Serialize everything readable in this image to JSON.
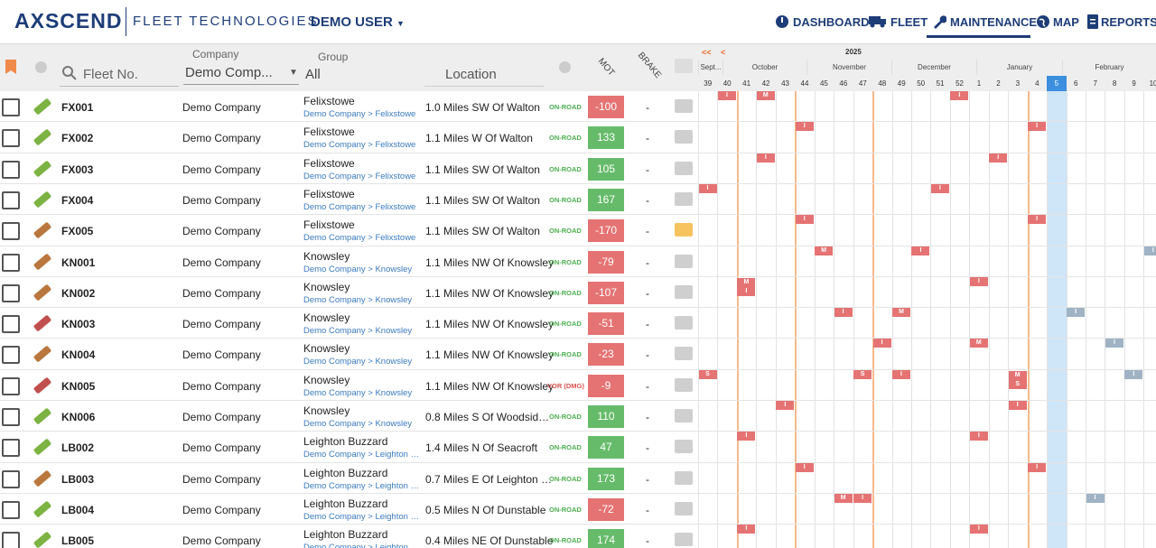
{
  "header": {
    "logo": "AXSCEND",
    "logo_sub": "FLEET TECHNOLOGIES",
    "user": "DEMO USER",
    "nav": [
      "DASHBOARD",
      "FLEET",
      "MAINTENANCE",
      "MAP",
      "REPORTS"
    ],
    "active_nav": "MAINTENANCE"
  },
  "filters": {
    "fleet_placeholder": "Fleet No.",
    "company_label": "Company",
    "company_value": "Demo Comp...",
    "group_label": "Group",
    "group_value": "All",
    "location_label": "Location",
    "mot_label": "MOT",
    "brake_label": "BRAKE"
  },
  "calendar": {
    "prev_fast": "<<",
    "prev": "<",
    "year": "2025",
    "months": [
      "Sept...",
      "October",
      "November",
      "December",
      "January",
      "February"
    ],
    "weeks": [
      "39",
      "40",
      "41",
      "42",
      "43",
      "44",
      "45",
      "46",
      "47",
      "48",
      "49",
      "50",
      "51",
      "52",
      "1",
      "2",
      "3",
      "4",
      "5",
      "6",
      "7",
      "8",
      "9",
      "10"
    ],
    "current_week": "5"
  },
  "rows": [
    {
      "fleet": "FX001",
      "company": "Demo Company",
      "group": "Felixstowe",
      "path": "Demo Company > Felixstowe",
      "location": "1.0 Miles SW Of Walton",
      "status": "ON-ROAD",
      "mot": -100,
      "brake": "-",
      "icon_color": "#7cb342",
      "note": false,
      "events": [
        {
          "week": "40",
          "labels": [
            "I"
          ],
          "color": "#e57373"
        },
        {
          "week": "42",
          "labels": [
            "M"
          ],
          "color": "#e57373"
        },
        {
          "week": "52",
          "labels": [
            "I"
          ],
          "color": "#e57373"
        }
      ]
    },
    {
      "fleet": "FX002",
      "company": "Demo Company",
      "group": "Felixstowe",
      "path": "Demo Company > Felixstowe",
      "location": "1.1 Miles W Of Walton",
      "status": "ON-ROAD",
      "mot": 133,
      "brake": "-",
      "icon_color": "#7cb342",
      "note": false,
      "events": [
        {
          "week": "44",
          "labels": [
            "I"
          ],
          "color": "#e57373"
        },
        {
          "week": "4",
          "labels": [
            "I"
          ],
          "color": "#e57373"
        }
      ]
    },
    {
      "fleet": "FX003",
      "company": "Demo Company",
      "group": "Felixstowe",
      "path": "Demo Company > Felixstowe",
      "location": "1.1 Miles SW Of Walton",
      "status": "ON-ROAD",
      "mot": 105,
      "brake": "-",
      "icon_color": "#7cb342",
      "note": false,
      "events": [
        {
          "week": "42",
          "labels": [
            "I"
          ],
          "color": "#e57373"
        },
        {
          "week": "2",
          "labels": [
            "I"
          ],
          "color": "#e57373"
        }
      ]
    },
    {
      "fleet": "FX004",
      "company": "Demo Company",
      "group": "Felixstowe",
      "path": "Demo Company > Felixstowe",
      "location": "1.1 Miles SW Of Walton",
      "status": "ON-ROAD",
      "mot": 167,
      "brake": "-",
      "icon_color": "#7cb342",
      "note": false,
      "events": [
        {
          "week": "39",
          "labels": [
            "I"
          ],
          "color": "#e57373"
        },
        {
          "week": "51",
          "labels": [
            "I"
          ],
          "color": "#e57373"
        }
      ]
    },
    {
      "fleet": "FX005",
      "company": "Demo Company",
      "group": "Felixstowe",
      "path": "Demo Company > Felixstowe",
      "location": "1.1 Miles SW Of Walton",
      "status": "ON-ROAD",
      "mot": -170,
      "brake": "-",
      "icon_color": "#b9773d",
      "note": true,
      "events": [
        {
          "week": "44",
          "labels": [
            "I"
          ],
          "color": "#e57373"
        },
        {
          "week": "4",
          "labels": [
            "I"
          ],
          "color": "#e57373"
        }
      ]
    },
    {
      "fleet": "KN001",
      "company": "Demo Company",
      "group": "Knowsley",
      "path": "Demo Company > Knowsley",
      "location": "1.1 Miles NW Of Knowsley",
      "status": "ON-ROAD",
      "mot": -79,
      "brake": "-",
      "icon_color": "#b9773d",
      "note": false,
      "events": [
        {
          "week": "45",
          "labels": [
            "M"
          ],
          "color": "#e57373"
        },
        {
          "week": "50",
          "labels": [
            "I"
          ],
          "color": "#e57373"
        },
        {
          "week": "10",
          "labels": [
            "I"
          ],
          "color": "#9fb3c4"
        }
      ]
    },
    {
      "fleet": "KN002",
      "company": "Demo Company",
      "group": "Knowsley",
      "path": "Demo Company > Knowsley",
      "location": "1.1 Miles NW Of Knowsley",
      "status": "ON-ROAD",
      "mot": -107,
      "brake": "-",
      "icon_color": "#b9773d",
      "note": false,
      "events": [
        {
          "week": "41",
          "labels": [
            "M",
            "I"
          ],
          "color": "#e57373"
        },
        {
          "week": "1",
          "labels": [
            "I"
          ],
          "color": "#e57373"
        }
      ]
    },
    {
      "fleet": "KN003",
      "company": "Demo Company",
      "group": "Knowsley",
      "path": "Demo Company > Knowsley",
      "location": "1.1 Miles NW Of Knowsley",
      "status": "ON-ROAD",
      "mot": -51,
      "brake": "-",
      "icon_color": "#c0504d",
      "note": false,
      "events": [
        {
          "week": "46",
          "labels": [
            "I"
          ],
          "color": "#e57373"
        },
        {
          "week": "49",
          "labels": [
            "M"
          ],
          "color": "#e57373"
        },
        {
          "week": "6",
          "labels": [
            "I"
          ],
          "color": "#9fb3c4"
        }
      ]
    },
    {
      "fleet": "KN004",
      "company": "Demo Company",
      "group": "Knowsley",
      "path": "Demo Company > Knowsley",
      "location": "1.1 Miles NW Of Knowsley",
      "status": "ON-ROAD",
      "mot": -23,
      "brake": "-",
      "icon_color": "#b9773d",
      "note": false,
      "events": [
        {
          "week": "48",
          "labels": [
            "I"
          ],
          "color": "#e57373"
        },
        {
          "week": "1",
          "labels": [
            "M"
          ],
          "color": "#e57373"
        },
        {
          "week": "8",
          "labels": [
            "I"
          ],
          "color": "#9fb3c4"
        }
      ]
    },
    {
      "fleet": "KN005",
      "company": "Demo Company",
      "group": "Knowsley",
      "path": "Demo Company > Knowsley",
      "location": "1.1 Miles NW Of Knowsley",
      "status": "VOR (DMG)",
      "mot": -9,
      "brake": "-",
      "icon_color": "#c0504d",
      "note": false,
      "events": [
        {
          "week": "39",
          "labels": [
            "S"
          ],
          "color": "#e57373"
        },
        {
          "week": "47",
          "labels": [
            "S"
          ],
          "color": "#e57373"
        },
        {
          "week": "49",
          "labels": [
            "I"
          ],
          "color": "#e57373"
        },
        {
          "week": "3",
          "labels": [
            "M",
            "S"
          ],
          "color": "#e57373"
        },
        {
          "week": "9",
          "labels": [
            "I"
          ],
          "color": "#9fb3c4"
        }
      ]
    },
    {
      "fleet": "KN006",
      "company": "Demo Company",
      "group": "Knowsley",
      "path": "Demo Company > Knowsley",
      "location": "0.8 Miles S Of Woodsid…",
      "status": "ON-ROAD",
      "mot": 110,
      "brake": "-",
      "icon_color": "#7cb342",
      "note": false,
      "events": [
        {
          "week": "43",
          "labels": [
            "I"
          ],
          "color": "#e57373"
        },
        {
          "week": "3",
          "labels": [
            "I"
          ],
          "color": "#e57373"
        }
      ]
    },
    {
      "fleet": "LB002",
      "company": "Demo Company",
      "group": "Leighton Buzzard",
      "path": "Demo Company > Leighton …",
      "location": "1.4 Miles N Of Seacroft",
      "status": "ON-ROAD",
      "mot": 47,
      "brake": "-",
      "icon_color": "#7cb342",
      "note": false,
      "events": [
        {
          "week": "41",
          "labels": [
            "I"
          ],
          "color": "#e57373"
        },
        {
          "week": "1",
          "labels": [
            "I"
          ],
          "color": "#e57373"
        }
      ]
    },
    {
      "fleet": "LB003",
      "company": "Demo Company",
      "group": "Leighton Buzzard",
      "path": "Demo Company > Leighton …",
      "location": "0.7 Miles E Of Leighton …",
      "status": "ON-ROAD",
      "mot": 173,
      "brake": "-",
      "icon_color": "#b9773d",
      "note": false,
      "events": [
        {
          "week": "44",
          "labels": [
            "I"
          ],
          "color": "#e57373"
        },
        {
          "week": "4",
          "labels": [
            "I"
          ],
          "color": "#e57373"
        }
      ]
    },
    {
      "fleet": "LB004",
      "company": "Demo Company",
      "group": "Leighton Buzzard",
      "path": "Demo Company > Leighton …",
      "location": "0.5 Miles N Of Dunstable",
      "status": "ON-ROAD",
      "mot": -72,
      "brake": "-",
      "icon_color": "#7cb342",
      "note": false,
      "events": [
        {
          "week": "46",
          "labels": [
            "M"
          ],
          "color": "#e57373"
        },
        {
          "week": "47",
          "labels": [
            "I"
          ],
          "color": "#e57373"
        },
        {
          "week": "7",
          "labels": [
            "I"
          ],
          "color": "#9fb3c4"
        }
      ]
    },
    {
      "fleet": "LB005",
      "company": "Demo Company",
      "group": "Leighton Buzzard",
      "path": "Demo Company > Leighton …",
      "location": "0.4 Miles NE Of Dunstable",
      "status": "ON-ROAD",
      "mot": 174,
      "brake": "-",
      "icon_color": "#7cb342",
      "note": false,
      "events": [
        {
          "week": "41",
          "labels": [
            "I"
          ],
          "color": "#e57373"
        },
        {
          "week": "1",
          "labels": [
            "I"
          ],
          "color": "#e57373"
        }
      ]
    }
  ]
}
